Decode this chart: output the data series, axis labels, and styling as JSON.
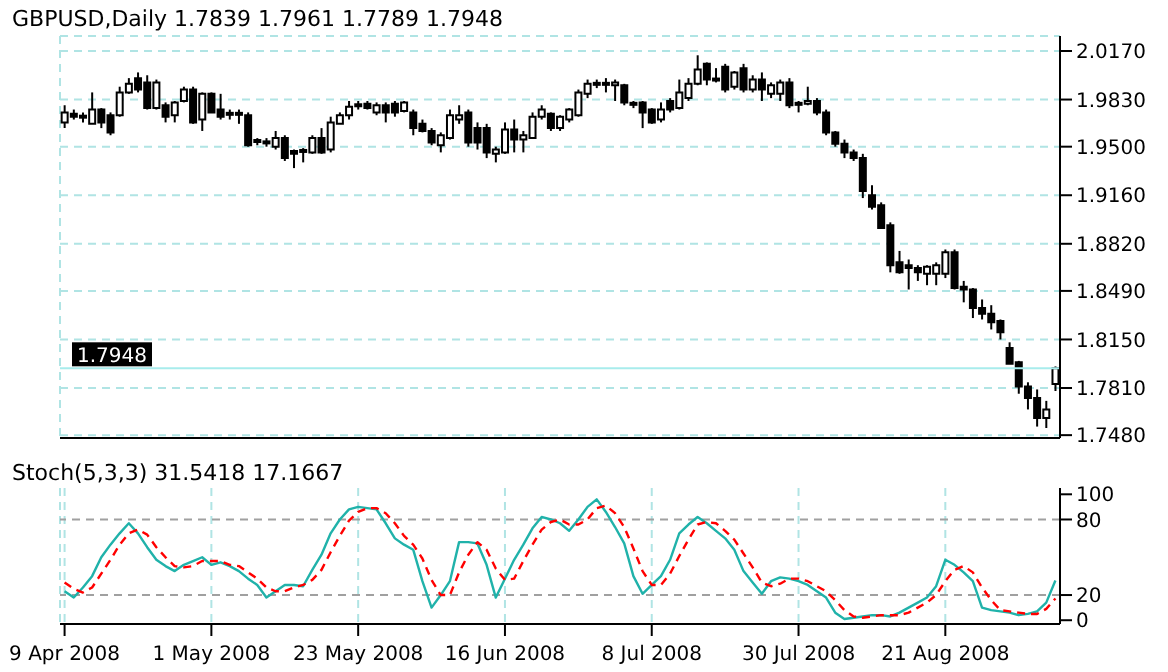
{
  "chart_data": [
    {
      "type": "candlestick",
      "title": "GBPUSD,Daily 1.7839 1.7961 1.7789 1.7948",
      "categories": [
        null,
        null,
        null,
        null,
        null,
        null,
        null,
        null,
        null,
        null,
        null,
        null,
        null,
        null,
        null,
        null,
        null,
        null,
        null,
        null,
        null,
        null,
        null,
        null,
        null,
        null,
        null,
        null,
        null,
        null,
        null,
        null,
        null,
        null,
        null,
        null,
        null,
        null,
        null,
        null,
        null,
        null,
        null,
        null,
        null,
        null,
        null,
        null,
        null,
        null,
        null,
        null,
        null,
        null,
        null,
        null,
        null,
        null,
        null,
        null,
        null,
        null,
        null,
        null,
        null,
        null,
        null,
        null,
        null,
        null,
        null,
        null,
        null,
        null,
        null,
        null,
        null,
        null,
        null,
        null,
        null,
        null,
        null,
        null,
        null,
        null,
        null,
        null,
        null,
        null,
        null,
        null,
        null,
        null,
        null,
        null,
        null,
        null,
        null,
        null,
        null,
        null,
        null,
        null,
        null,
        null,
        null,
        null,
        null
      ],
      "ohlc": [
        [
          1.967,
          1.979,
          1.963,
          1.974
        ],
        [
          1.973,
          1.976,
          1.969,
          1.971
        ],
        [
          1.971,
          1.974,
          1.967,
          1.971
        ],
        [
          1.966,
          1.988,
          1.966,
          1.976
        ],
        [
          1.976,
          1.977,
          1.963,
          1.967
        ],
        [
          1.972,
          1.974,
          1.958,
          1.96
        ],
        [
          1.972,
          1.992,
          1.971,
          1.988
        ],
        [
          1.988,
          1.998,
          1.987,
          1.994
        ],
        [
          1.998,
          2.002,
          1.988,
          1.99
        ],
        [
          1.995,
          2.0,
          1.976,
          1.977
        ],
        [
          1.977,
          1.997,
          1.976,
          1.995
        ],
        [
          1.979,
          1.981,
          1.967,
          1.971
        ],
        [
          1.972,
          1.982,
          1.967,
          1.981
        ],
        [
          1.982,
          1.992,
          1.981,
          1.99
        ],
        [
          1.99,
          1.992,
          1.966,
          1.967
        ],
        [
          1.969,
          1.988,
          1.961,
          1.987
        ],
        [
          1.987,
          1.988,
          1.974,
          1.974
        ],
        [
          1.976,
          1.987,
          1.969,
          1.971
        ],
        [
          1.973,
          1.976,
          1.969,
          1.972
        ],
        [
          1.973,
          1.976,
          1.966,
          1.972
        ],
        [
          1.972,
          1.974,
          1.95,
          1.951
        ],
        [
          1.954,
          1.956,
          1.951,
          1.953
        ],
        [
          1.953,
          1.956,
          1.95,
          1.953
        ],
        [
          1.95,
          1.961,
          1.948,
          1.956
        ],
        [
          1.956,
          1.958,
          1.94,
          1.942
        ],
        [
          1.947,
          1.948,
          1.935,
          1.945
        ],
        [
          1.947,
          1.949,
          1.939,
          1.946
        ],
        [
          1.946,
          1.958,
          1.945,
          1.956
        ],
        [
          1.956,
          1.963,
          1.945,
          1.946
        ],
        [
          1.948,
          1.971,
          1.946,
          1.967
        ],
        [
          1.966,
          1.974,
          1.966,
          1.972
        ],
        [
          1.972,
          1.982,
          1.969,
          1.978
        ],
        [
          1.979,
          1.982,
          1.976,
          1.979
        ],
        [
          1.98,
          1.982,
          1.976,
          1.977
        ],
        [
          1.974,
          1.981,
          1.972,
          1.979
        ],
        [
          1.979,
          1.981,
          1.967,
          1.974
        ],
        [
          1.98,
          1.982,
          1.971,
          1.974
        ],
        [
          1.975,
          1.982,
          1.974,
          1.981
        ],
        [
          1.974,
          1.976,
          1.958,
          1.963
        ],
        [
          1.966,
          1.969,
          1.96,
          1.961
        ],
        [
          1.961,
          1.963,
          1.951,
          1.953
        ],
        [
          1.951,
          1.96,
          1.946,
          1.958
        ],
        [
          1.956,
          1.976,
          1.955,
          1.972
        ],
        [
          1.969,
          1.979,
          1.966,
          1.972
        ],
        [
          1.974,
          1.976,
          1.95,
          1.953
        ],
        [
          1.963,
          1.967,
          1.948,
          1.953
        ],
        [
          1.963,
          1.966,
          1.942,
          1.946
        ],
        [
          1.945,
          1.95,
          1.939,
          1.948
        ],
        [
          1.946,
          1.967,
          1.945,
          1.962
        ],
        [
          1.962,
          1.969,
          1.946,
          1.955
        ],
        [
          1.955,
          1.961,
          1.946,
          1.958
        ],
        [
          1.956,
          1.974,
          1.956,
          1.971
        ],
        [
          1.971,
          1.979,
          1.969,
          1.976
        ],
        [
          1.973,
          1.974,
          1.961,
          1.963
        ],
        [
          1.963,
          1.972,
          1.961,
          1.971
        ],
        [
          1.969,
          1.977,
          1.967,
          1.976
        ],
        [
          1.972,
          1.99,
          1.971,
          1.988
        ],
        [
          1.987,
          1.997,
          1.984,
          1.994
        ],
        [
          1.994,
          1.997,
          1.991,
          1.994
        ],
        [
          1.994,
          1.998,
          1.988,
          1.993
        ],
        [
          1.993,
          1.997,
          1.982,
          1.995
        ],
        [
          1.993,
          1.994,
          1.979,
          1.981
        ],
        [
          1.98,
          1.982,
          1.977,
          1.98
        ],
        [
          1.981,
          1.982,
          1.963,
          1.974
        ],
        [
          1.976,
          1.977,
          1.966,
          1.967
        ],
        [
          1.969,
          1.981,
          1.967,
          1.976
        ],
        [
          1.982,
          1.984,
          1.974,
          1.976
        ],
        [
          1.977,
          1.997,
          1.976,
          1.988
        ],
        [
          1.984,
          1.998,
          1.982,
          1.994
        ],
        [
          1.994,
          2.014,
          1.993,
          2.004
        ],
        [
          2.008,
          2.009,
          1.993,
          1.997
        ],
        [
          1.997,
          2.005,
          1.995,
          1.997
        ],
        [
          2.006,
          2.008,
          1.988,
          1.99
        ],
        [
          1.992,
          2.003,
          1.99,
          2.002
        ],
        [
          2.005,
          2.008,
          1.988,
          1.99
        ],
        [
          1.99,
          2.0,
          1.988,
          1.997
        ],
        [
          1.997,
          2.002,
          1.982,
          1.99
        ],
        [
          1.987,
          1.995,
          1.984,
          1.993
        ],
        [
          1.987,
          1.997,
          1.982,
          1.995
        ],
        [
          1.995,
          1.998,
          1.977,
          1.979
        ],
        [
          1.98,
          1.982,
          1.974,
          1.979
        ],
        [
          1.98,
          1.992,
          1.979,
          1.982
        ],
        [
          1.982,
          1.984,
          1.972,
          1.974
        ],
        [
          1.974,
          1.976,
          1.958,
          1.96
        ],
        [
          1.96,
          1.961,
          1.95,
          1.952
        ],
        [
          1.952,
          1.955,
          1.942,
          1.946
        ],
        [
          1.946,
          1.948,
          1.94,
          1.942
        ],
        [
          1.942,
          1.945,
          1.914,
          1.919
        ],
        [
          1.916,
          1.923,
          1.906,
          1.908
        ],
        [
          1.909,
          1.911,
          1.893,
          1.893
        ],
        [
          1.895,
          1.897,
          1.862,
          1.867
        ],
        [
          1.869,
          1.877,
          1.861,
          1.862
        ],
        [
          1.867,
          1.871,
          1.85,
          1.865
        ],
        [
          1.865,
          1.867,
          1.856,
          1.862
        ],
        [
          1.861,
          1.867,
          1.853,
          1.866
        ],
        [
          1.861,
          1.869,
          1.853,
          1.867
        ],
        [
          1.861,
          1.878,
          1.858,
          1.876
        ],
        [
          1.876,
          1.878,
          1.85,
          1.851
        ],
        [
          1.852,
          1.856,
          1.841,
          1.85
        ],
        [
          1.85,
          1.851,
          1.83,
          1.837
        ],
        [
          1.837,
          1.843,
          1.829,
          1.833
        ],
        [
          1.833,
          1.839,
          1.822,
          1.827
        ],
        [
          1.828,
          1.829,
          1.815,
          1.82
        ],
        [
          1.809,
          1.813,
          1.798,
          1.798
        ],
        [
          1.799,
          1.8,
          1.777,
          1.782
        ],
        [
          1.782,
          1.785,
          1.766,
          1.774
        ],
        [
          1.774,
          1.78,
          1.754,
          1.76
        ],
        [
          1.76,
          1.772,
          1.753,
          1.766
        ],
        [
          1.7839,
          1.7961,
          1.7789,
          1.7948
        ]
      ],
      "ylim": [
        1.746,
        2.0275
      ],
      "yticks": [
        {
          "value": 1.748,
          "label": "1.7480"
        },
        {
          "value": 1.781,
          "label": "1.7810"
        },
        {
          "value": 1.815,
          "label": "1.8150"
        },
        {
          "value": 1.849,
          "label": "1.8490"
        },
        {
          "value": 1.882,
          "label": "1.8820"
        },
        {
          "value": 1.916,
          "label": "1.9160"
        },
        {
          "value": 1.95,
          "label": "1.9500"
        },
        {
          "value": 1.983,
          "label": "1.9830"
        },
        {
          "value": 2.017,
          "label": "2.0170"
        }
      ],
      "grid": true,
      "tick_labels": "y",
      "ref_lines": [
        {
          "axis": "y",
          "value": 1.7948,
          "label": "1.7948",
          "color": "#a8ecec"
        }
      ]
    },
    {
      "type": "line",
      "title": "Stoch(5,3,3) 31.5418 17.1667",
      "categories": [
        "9 Apr 2008",
        null,
        null,
        null,
        null,
        null,
        null,
        null,
        null,
        null,
        null,
        null,
        null,
        null,
        null,
        null,
        "1 May 2008",
        null,
        null,
        null,
        null,
        null,
        null,
        null,
        null,
        null,
        null,
        null,
        null,
        null,
        null,
        null,
        "23 May 2008",
        null,
        null,
        null,
        null,
        null,
        null,
        null,
        null,
        null,
        null,
        null,
        null,
        null,
        null,
        null,
        "16 Jun 2008",
        null,
        null,
        null,
        null,
        null,
        null,
        null,
        null,
        null,
        null,
        null,
        null,
        null,
        null,
        null,
        "8 Jul 2008",
        null,
        null,
        null,
        null,
        null,
        null,
        null,
        null,
        null,
        null,
        null,
        null,
        null,
        null,
        null,
        "30 Jul 2008",
        null,
        null,
        null,
        null,
        null,
        null,
        null,
        null,
        null,
        null,
        null,
        null,
        null,
        null,
        null,
        "21 Aug 2008",
        null,
        null,
        null,
        null,
        null,
        null,
        null,
        null,
        null,
        null,
        null,
        null
      ],
      "series": [
        {
          "color": "#20b2aa",
          "values": [
            23,
            18,
            26,
            35,
            50,
            60,
            69,
            77,
            69,
            58,
            48,
            43,
            39,
            44,
            47,
            50,
            44,
            46,
            43,
            39,
            33,
            28,
            18,
            23,
            28,
            28,
            27,
            40,
            52,
            69,
            80,
            88,
            90,
            89,
            88,
            77,
            65,
            60,
            56,
            31,
            10,
            20,
            31,
            62,
            62,
            61,
            44,
            18,
            33,
            48,
            60,
            73,
            82,
            80,
            77,
            71,
            80,
            90,
            96,
            86,
            74,
            61,
            35,
            21,
            28,
            35,
            48,
            69,
            76,
            82,
            77,
            71,
            65,
            56,
            39,
            30,
            21,
            31,
            34,
            33,
            31,
            28,
            23,
            18,
            6,
            1,
            2,
            3,
            4,
            4,
            3,
            6,
            10,
            14,
            18,
            27,
            48,
            44,
            38,
            31,
            10,
            8,
            7,
            6,
            4,
            5,
            7,
            14,
            31.5
          ]
        },
        {
          "color": "#ff0000",
          "line_style": "dashed",
          "values": [
            30,
            25,
            22,
            26,
            37,
            48,
            60,
            69,
            72,
            68,
            58,
            50,
            43,
            42,
            43,
            47,
            47,
            47,
            44,
            43,
            38,
            33,
            26,
            23,
            23,
            26,
            28,
            32,
            40,
            54,
            67,
            79,
            86,
            89,
            89,
            85,
            77,
            67,
            60,
            49,
            32,
            20,
            20,
            38,
            52,
            62,
            56,
            41,
            32,
            33,
            47,
            60,
            72,
            78,
            80,
            76,
            76,
            80,
            89,
            91,
            85,
            74,
            57,
            39,
            28,
            28,
            37,
            51,
            64,
            76,
            78,
            77,
            71,
            64,
            53,
            42,
            30,
            27,
            29,
            33,
            33,
            31,
            27,
            23,
            16,
            8,
            3,
            2,
            3,
            4,
            4,
            4,
            6,
            10,
            14,
            20,
            31,
            40,
            43,
            38,
            26,
            16,
            8,
            7,
            6,
            5,
            5,
            9,
            17.2
          ]
        }
      ],
      "ylim": [
        -3,
        105
      ],
      "yticks": [
        0,
        20,
        80,
        100
      ],
      "grid": "x",
      "ref_lines": [
        {
          "axis": "y",
          "value": 20,
          "color": "#a0a0a0",
          "line_style": "dashed"
        },
        {
          "axis": "y",
          "value": 80,
          "color": "#a0a0a0",
          "line_style": "dashed"
        }
      ]
    }
  ]
}
